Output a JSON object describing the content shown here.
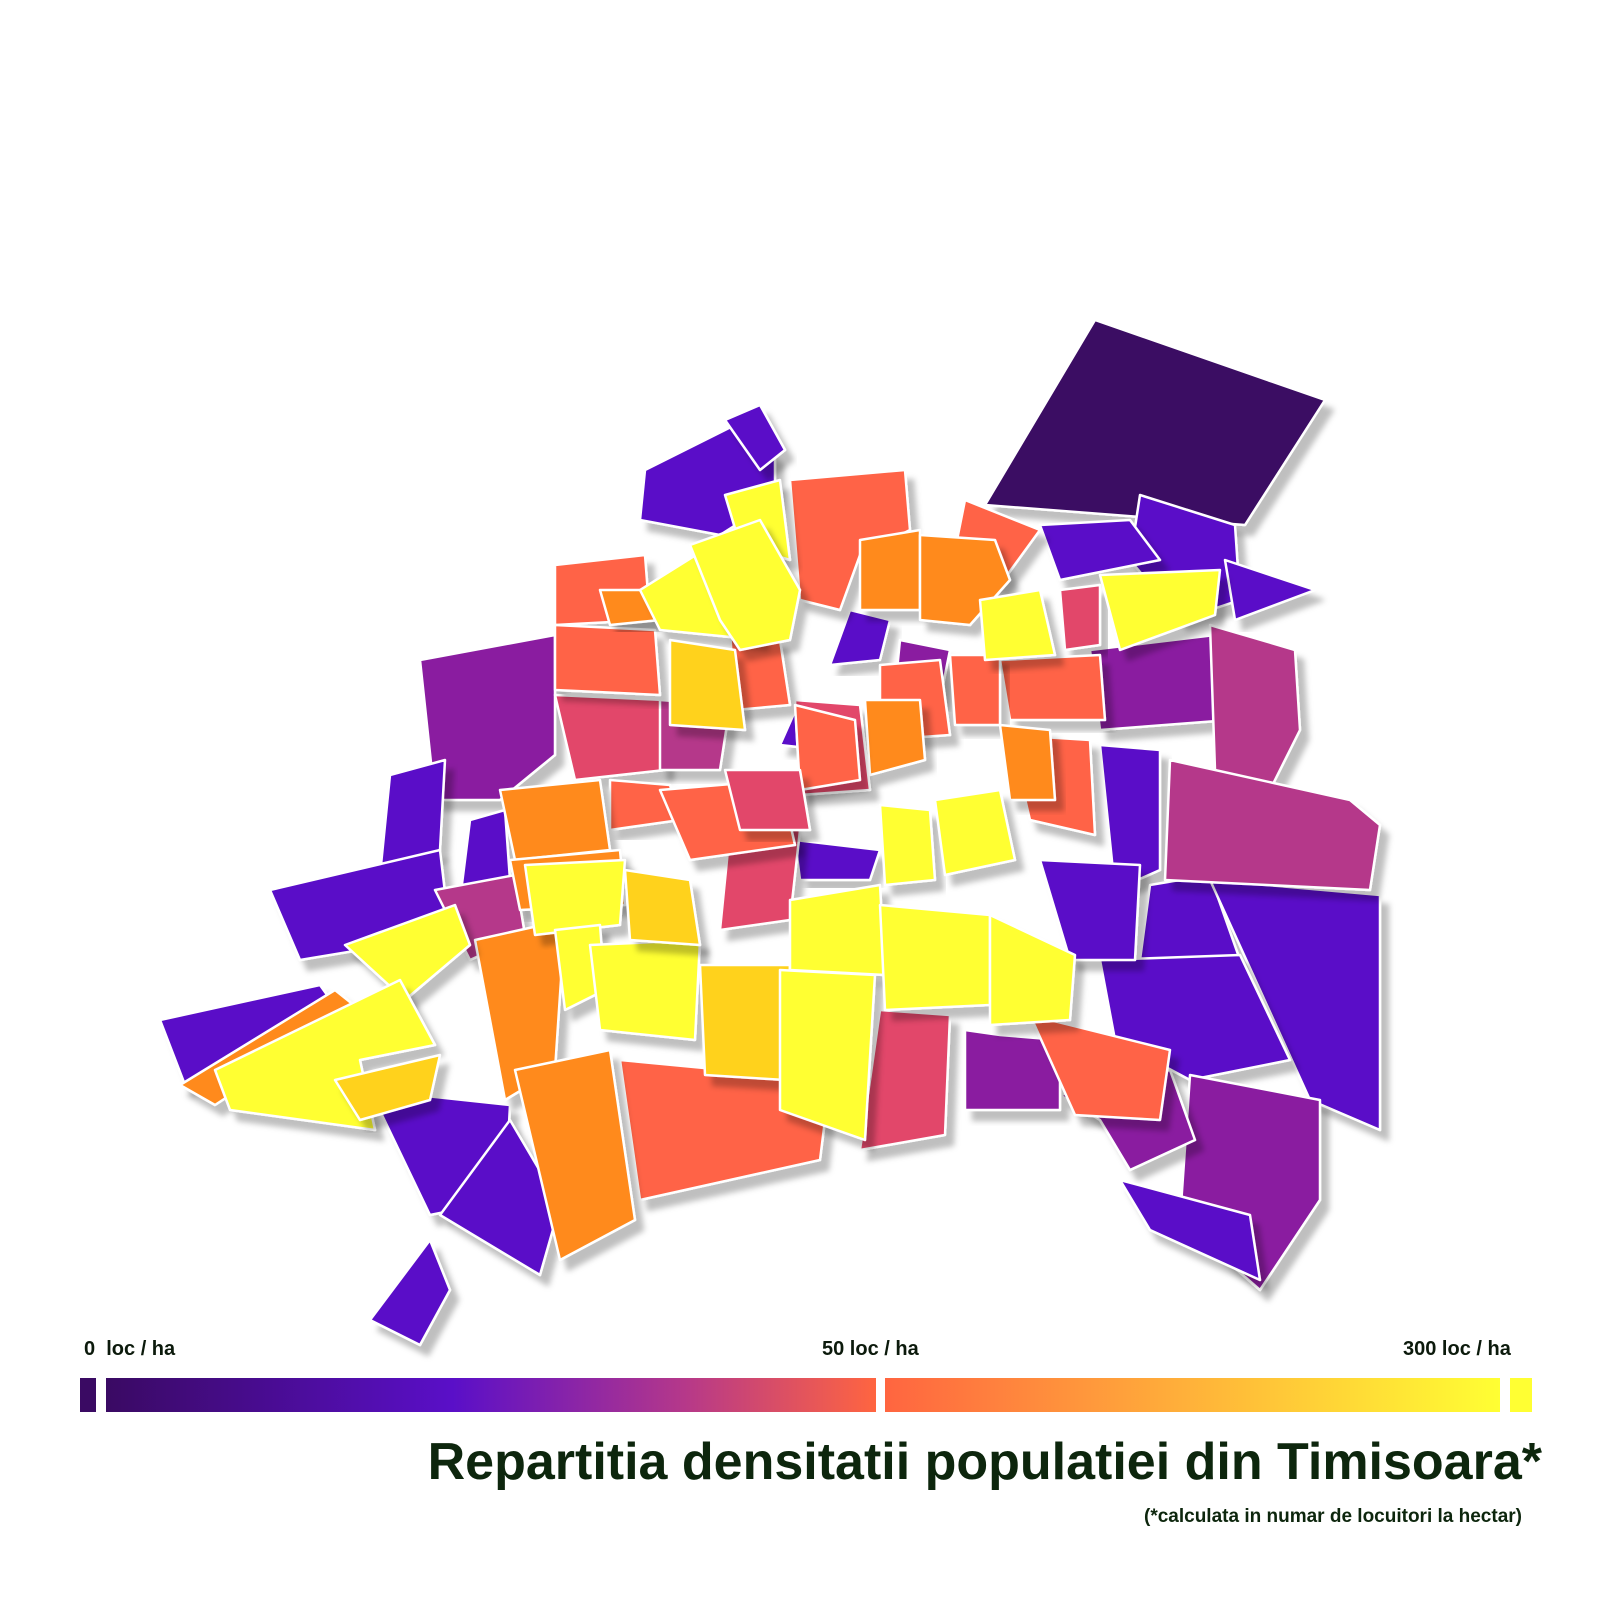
{
  "title": "Repartitia densitatii populatiei din Timisoara*",
  "subtitle": "(*calculata in numar de locuitori la hectar)",
  "legend": {
    "labels": [
      "0  loc / ha",
      "50 loc / ha",
      "300 loc / ha"
    ],
    "colors": {
      "low": "#3a0a63",
      "mid_low": "#5a0fc8",
      "mid": "#b5388a",
      "high": "#ff6540",
      "top": "#ffff33"
    }
  },
  "palette": {
    "dark": "#3a0a63",
    "violet": "#5a0fc8",
    "purple": "#8a1fa0",
    "magenta": "#b5388a",
    "pink": "#e2466a",
    "red_orange": "#ff6346",
    "orange": "#ff8a1a",
    "amber": "#ffd21c",
    "yellow": "#ffff33"
  }
}
